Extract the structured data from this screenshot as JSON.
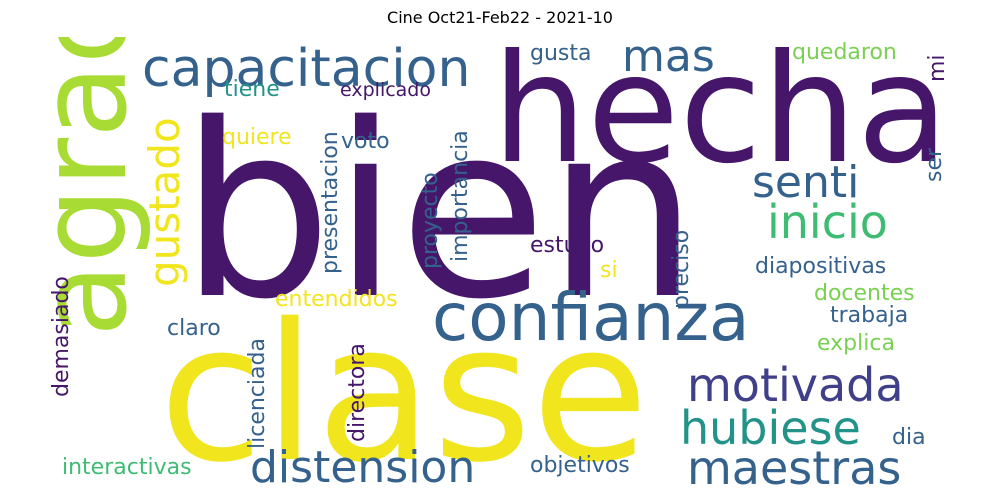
{
  "title": "Cine Oct21-Feb22 - 2021-10",
  "palette": {
    "dark_purple": "#45166a",
    "purple": "#3f3f8a",
    "slate": "#35618d",
    "teal_blue": "#2d7c8e",
    "teal": "#23938a",
    "green": "#3fbc73",
    "light_green": "#7ad151",
    "lime": "#a8db34",
    "yellow": "#f1e51d"
  },
  "words": [
    "bien",
    "hecha",
    "clase",
    "agrada",
    "confianza",
    "capacitacion",
    "mas",
    "gustado",
    "senti",
    "inicio",
    "motivada",
    "hubiese",
    "maestras",
    "distension",
    "quedaron",
    "mi",
    "gusta",
    "tiene",
    "explicado",
    "quiere",
    "voto",
    "presentacion",
    "proyecto",
    "importancia",
    "ser",
    "estuvo",
    "si",
    "preciso",
    "diapositivas",
    "entendidos",
    "docentes",
    "trabaja",
    "explica",
    "claro",
    "demasiado",
    "licenciada",
    "directora",
    "dia",
    "interactivas",
    "objetivos"
  ]
}
